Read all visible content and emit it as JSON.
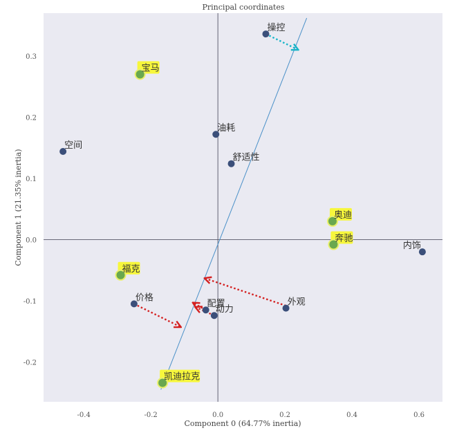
{
  "chart_data": {
    "type": "scatter",
    "title": "Principal coordinates",
    "xlabel": "Component 0 (64.77% inertia)",
    "ylabel": "Component 1 (21.35% inertia)",
    "xlim": [
      -0.52,
      0.67
    ],
    "ylim": [
      -0.265,
      0.37
    ],
    "xticks": [
      -0.4,
      -0.2,
      0.0,
      0.2,
      0.4,
      0.6
    ],
    "xtick_labels": [
      "-0.4",
      "-0.2",
      "0.0",
      "0.2",
      "0.4",
      "0.6"
    ],
    "yticks": [
      -0.2,
      -0.1,
      0.0,
      0.1,
      0.2,
      0.3
    ],
    "ytick_labels": [
      "-0.2",
      "-0.1",
      "0.0",
      "0.1",
      "0.2",
      "0.3"
    ],
    "grid": false,
    "background": "#eaeaf2",
    "series": [
      {
        "color": "#3b4f7a",
        "points": [
          {
            "label": "操控",
            "x": 0.143,
            "y": 0.336
          },
          {
            "label": "油耗",
            "x": -0.006,
            "y": 0.172
          },
          {
            "label": "空间",
            "x": -0.462,
            "y": 0.144
          },
          {
            "label": "舒适性",
            "x": 0.04,
            "y": 0.124
          },
          {
            "label": "内饰",
            "x": 0.61,
            "y": -0.02
          },
          {
            "label": "价格",
            "x": -0.25,
            "y": -0.105
          },
          {
            "label": "配置",
            "x": -0.036,
            "y": -0.115
          },
          {
            "label": "外观",
            "x": 0.203,
            "y": -0.112
          },
          {
            "label": "动力",
            "x": -0.011,
            "y": -0.124
          }
        ]
      },
      {
        "color": "#6aa84f",
        "highlight": "#f7f73c",
        "points": [
          {
            "label": "宝马",
            "x": -0.232,
            "y": 0.27
          },
          {
            "label": "奥迪",
            "x": 0.342,
            "y": 0.03
          },
          {
            "label": "奔驰",
            "x": 0.345,
            "y": -0.008
          },
          {
            "label": "福克",
            "x": -0.29,
            "y": -0.058
          },
          {
            "label": "凯迪拉克",
            "x": -0.165,
            "y": -0.234
          }
        ]
      }
    ],
    "regression_line": {
      "x": [
        -0.17,
        0.265
      ],
      "y": [
        -0.245,
        0.362
      ],
      "color": "#4a90c8"
    },
    "arrows": [
      {
        "from": [
          0.143,
          0.336
        ],
        "to": [
          0.24,
          0.31
        ],
        "color": "#17b5c8"
      },
      {
        "from": [
          0.203,
          -0.108
        ],
        "to": [
          -0.04,
          -0.063
        ],
        "color": "#d42020"
      },
      {
        "from": [
          -0.25,
          -0.105
        ],
        "to": [
          -0.11,
          -0.143
        ],
        "color": "#d42020"
      },
      {
        "from": [
          -0.011,
          -0.124
        ],
        "to": [
          -0.068,
          -0.11
        ],
        "color": "#d42020"
      },
      {
        "from": [
          -0.036,
          -0.115
        ],
        "to": [
          -0.075,
          -0.103
        ],
        "color": "#d42020"
      }
    ]
  }
}
